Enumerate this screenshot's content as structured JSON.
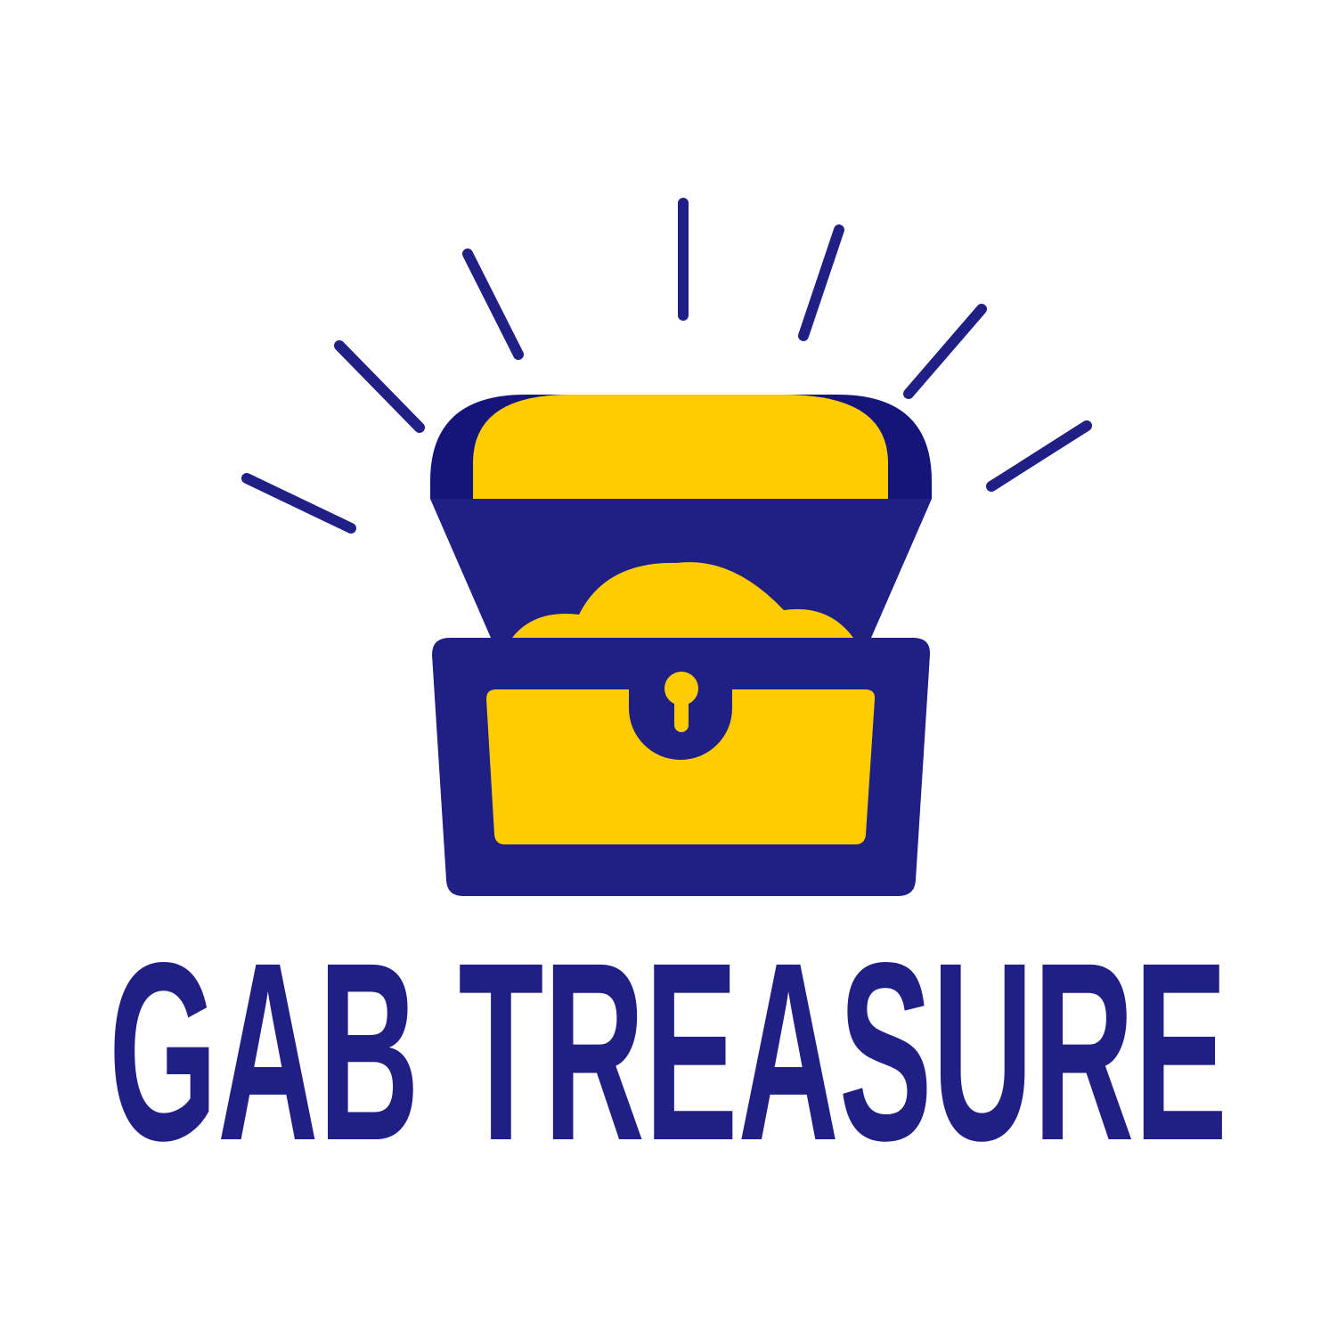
{
  "logo": {
    "text": "GAB TREASURE"
  }
}
